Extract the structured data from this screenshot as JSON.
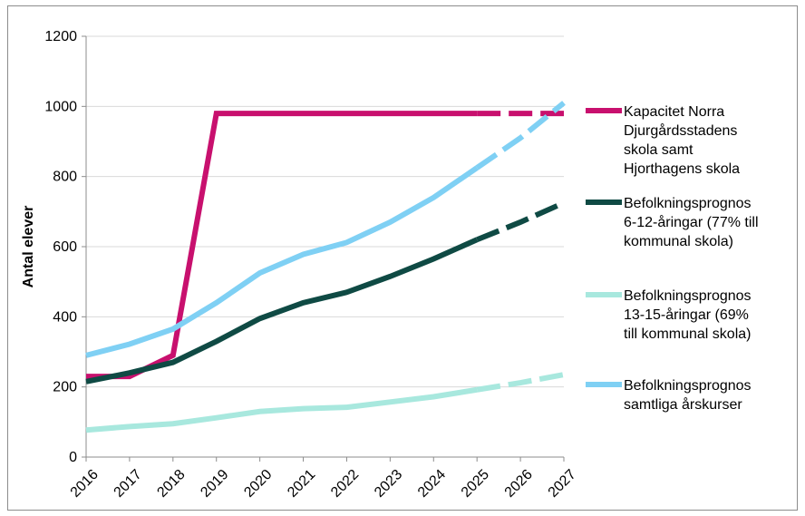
{
  "chart_data": {
    "type": "line",
    "title": "",
    "xlabel": "",
    "ylabel": "Antal elever",
    "ylim": [
      0,
      1200
    ],
    "yticks": [
      0,
      200,
      400,
      600,
      800,
      1000,
      1200
    ],
    "grid": "horizontal",
    "legend": "right",
    "x": [
      "2016",
      "2017",
      "2018",
      "2019",
      "2020",
      "2021",
      "2022",
      "2023",
      "2024",
      "2025",
      "2026",
      "2027"
    ],
    "series": [
      {
        "name_lines": [
          "Kapacitet Norra",
          "Djurgårdsstadens",
          "skola samt",
          "Hjorthagens skola"
        ],
        "color": "#c8106e",
        "values": [
          230,
          230,
          290,
          980,
          980,
          980,
          980,
          980,
          980,
          980,
          980,
          980
        ],
        "dashed_from": "2025"
      },
      {
        "name_lines": [
          "Befolkningsprognos",
          "6-12-åringar (77% till",
          "kommunal skola)"
        ],
        "color": "#0f4a44",
        "values": [
          215,
          240,
          270,
          330,
          395,
          440,
          470,
          515,
          565,
          620,
          670,
          725
        ],
        "dashed_from": "2025"
      },
      {
        "name_lines": [
          "Befolkningsprognos",
          "13-15-åringar (69%",
          "till kommunal skola)"
        ],
        "color": "#a8e8de",
        "values": [
          77,
          87,
          95,
          112,
          130,
          138,
          142,
          157,
          172,
          192,
          212,
          235
        ],
        "dashed_from": "2025"
      },
      {
        "name_lines": [
          "Befolkningsprognos",
          "samtliga årskurser"
        ],
        "color": "#7fd0f4",
        "values": [
          290,
          322,
          365,
          440,
          525,
          578,
          612,
          670,
          740,
          825,
          910,
          1010
        ],
        "dashed_from": "2025"
      }
    ]
  }
}
